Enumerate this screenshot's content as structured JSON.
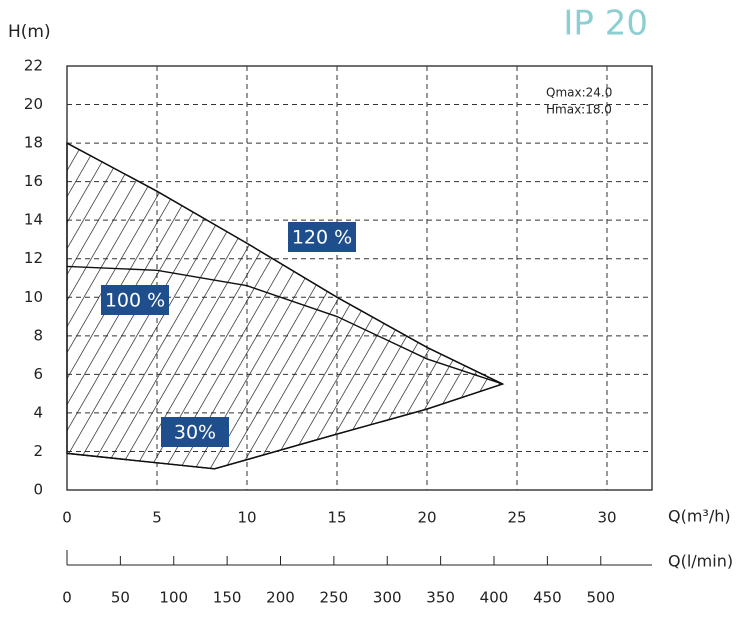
{
  "chart_data": {
    "type": "line",
    "title": "IP 20",
    "y_label": "H(m)",
    "x_label": "Q(m³/h)",
    "x2_label": "Q(l/min)",
    "annotations": [
      "Qmax:24.0",
      "Hmax:18.0"
    ],
    "xlim": [
      0,
      32.5
    ],
    "xticks": [
      0,
      5,
      10,
      15,
      20,
      25,
      30
    ],
    "ylim": [
      0,
      22
    ],
    "yticks": [
      0,
      2,
      4,
      6,
      8,
      10,
      12,
      14,
      16,
      18,
      20,
      22
    ],
    "x2lim": [
      0,
      548
    ],
    "x2ticks": [
      0,
      50,
      100,
      150,
      200,
      250,
      300,
      350,
      400,
      450,
      500
    ],
    "grid": true,
    "series": [
      {
        "name": "120 %",
        "color": "#111111",
        "x": [
          0,
          5,
          10,
          15,
          20,
          24.2
        ],
        "values": [
          18,
          15.5,
          12.8,
          10,
          7.4,
          5.5
        ]
      },
      {
        "name": "100 %",
        "color": "#111111",
        "x": [
          0,
          5,
          10,
          15,
          20,
          24.2
        ],
        "values": [
          11.6,
          11.4,
          10.6,
          9,
          6.8,
          5.5
        ]
      },
      {
        "name": "30%",
        "color": "#111111",
        "x": [
          0,
          8.2,
          15,
          20,
          24.2
        ],
        "values": [
          1.9,
          1.1,
          2.9,
          4.2,
          5.5
        ]
      }
    ]
  }
}
